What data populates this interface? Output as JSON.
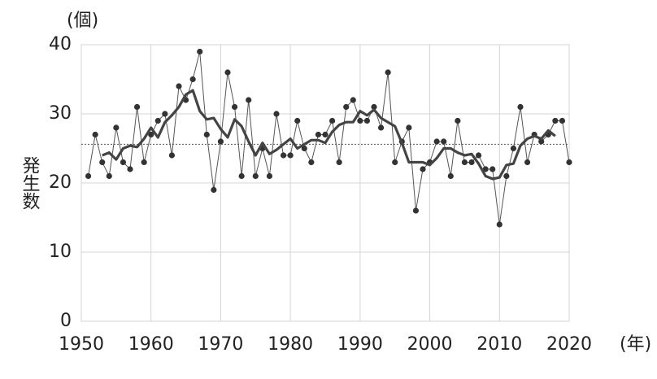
{
  "chart_data": {
    "type": "line",
    "y_unit_label": "(個)",
    "y_label": "発生数",
    "x_unit_label": "(年)",
    "x": [
      1951,
      1952,
      1953,
      1954,
      1955,
      1956,
      1957,
      1958,
      1959,
      1960,
      1961,
      1962,
      1963,
      1964,
      1965,
      1966,
      1967,
      1968,
      1969,
      1970,
      1971,
      1972,
      1973,
      1974,
      1975,
      1976,
      1977,
      1978,
      1979,
      1980,
      1981,
      1982,
      1983,
      1984,
      1985,
      1986,
      1987,
      1988,
      1989,
      1990,
      1991,
      1992,
      1993,
      1994,
      1995,
      1996,
      1997,
      1998,
      1999,
      2000,
      2001,
      2002,
      2003,
      2004,
      2005,
      2006,
      2007,
      2008,
      2009,
      2010,
      2011,
      2012,
      2013,
      2014,
      2015,
      2016,
      2017,
      2018,
      2019,
      2020
    ],
    "series": [
      {
        "color": "#555555",
        "markers": true,
        "line_width": 1,
        "values": [
          21,
          27,
          23,
          21,
          28,
          23,
          22,
          31,
          23,
          27,
          29,
          30,
          24,
          34,
          32,
          35,
          39,
          27,
          19,
          26,
          36,
          31,
          21,
          32,
          21,
          25,
          21,
          30,
          24,
          24,
          29,
          25,
          23,
          27,
          27,
          29,
          23,
          31,
          32,
          29,
          29,
          31,
          28,
          36,
          23,
          26,
          28,
          16,
          22,
          23,
          26,
          26,
          21,
          29,
          23,
          23,
          24,
          22,
          22,
          14,
          21,
          25,
          31,
          23,
          27,
          26,
          27,
          29,
          29,
          23
        ]
      },
      {
        "color": "#444444",
        "markers": false,
        "line_width": 3.2,
        "values": [
          null,
          null,
          24.0,
          24.4,
          23.4,
          25.0,
          25.4,
          25.2,
          26.4,
          28.0,
          26.6,
          28.8,
          29.8,
          31.0,
          32.8,
          33.4,
          30.4,
          29.2,
          29.4,
          27.8,
          26.6,
          29.2,
          28.2,
          26.0,
          24.0,
          25.8,
          24.2,
          24.8,
          25.6,
          26.4,
          25.0,
          25.6,
          26.2,
          26.2,
          25.8,
          27.4,
          28.4,
          28.8,
          28.8,
          30.4,
          29.8,
          30.6,
          29.4,
          28.8,
          28.2,
          25.8,
          23.0,
          23.0,
          23.0,
          22.6,
          23.6,
          25.0,
          25.0,
          24.4,
          24.0,
          24.2,
          22.8,
          21.0,
          20.6,
          20.8,
          22.6,
          22.8,
          25.4,
          26.4,
          26.8,
          26.4,
          27.6,
          26.8,
          null,
          null
        ]
      }
    ],
    "mean_line": 25.6,
    "xlim": [
      1950,
      2020
    ],
    "xticks": [
      1950,
      1960,
      1970,
      1980,
      1990,
      2000,
      2010,
      2020
    ],
    "ylim": [
      0,
      40
    ],
    "yticks": [
      0,
      10,
      20,
      30,
      40
    ],
    "grid": true
  }
}
